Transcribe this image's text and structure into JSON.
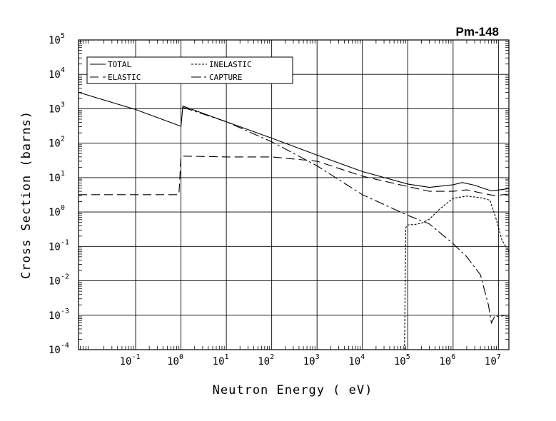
{
  "chart_data": {
    "type": "line",
    "title": "Pm-148",
    "xlabel": "Neutron Energy ( eV)",
    "ylabel": "Cross Section (barns)",
    "x_scale": "log",
    "y_scale": "log",
    "xlim": [
      0.0055,
      17000000
    ],
    "ylim": [
      0.0001,
      100000
    ],
    "grid": true,
    "legend_position": "top-left",
    "x_ticks": [
      {
        "base": "10",
        "exp": "-1",
        "value": 0.1
      },
      {
        "base": "10",
        "exp": "0",
        "value": 1
      },
      {
        "base": "10",
        "exp": "1",
        "value": 10
      },
      {
        "base": "10",
        "exp": "2",
        "value": 100
      },
      {
        "base": "10",
        "exp": "3",
        "value": 1000
      },
      {
        "base": "10",
        "exp": "4",
        "value": 10000
      },
      {
        "base": "10",
        "exp": "5",
        "value": 100000
      },
      {
        "base": "10",
        "exp": "6",
        "value": 1000000
      },
      {
        "base": "10",
        "exp": "7",
        "value": 10000000
      }
    ],
    "y_ticks": [
      {
        "base": "10",
        "exp": "-4",
        "value": 0.0001
      },
      {
        "base": "10",
        "exp": "-3",
        "value": 0.001
      },
      {
        "base": "10",
        "exp": "-2",
        "value": 0.01
      },
      {
        "base": "10",
        "exp": "-1",
        "value": 0.1
      },
      {
        "base": "10",
        "exp": "0",
        "value": 1
      },
      {
        "base": "10",
        "exp": "1",
        "value": 10
      },
      {
        "base": "10",
        "exp": "2",
        "value": 100
      },
      {
        "base": "10",
        "exp": "3",
        "value": 1000
      },
      {
        "base": "10",
        "exp": "4",
        "value": 10000
      },
      {
        "base": "10",
        "exp": "5",
        "value": 100000
      }
    ],
    "series": [
      {
        "name": "TOTAL",
        "dash": "solid",
        "x": [
          0.0055,
          0.1,
          1.0,
          1.0,
          1.1,
          10,
          100,
          1000,
          10000,
          100000,
          300000,
          1000000,
          1600000,
          3000000,
          7000000,
          17000000
        ],
        "y": [
          3000,
          950,
          310,
          310,
          1200,
          420,
          140,
          45,
          15,
          6.5,
          5.2,
          6.2,
          7.2,
          6.0,
          4.1,
          4.8
        ]
      },
      {
        "name": "ELASTIC",
        "dash": "long-dash",
        "x": [
          0.0055,
          0.9,
          0.9,
          1.0,
          1.1,
          10,
          100,
          1000,
          10000,
          100000,
          300000,
          1000000,
          2000000,
          5000000,
          8000000,
          17000000
        ],
        "y": [
          3.2,
          3.2,
          3.2,
          42,
          42,
          40,
          40,
          30,
          11,
          5.5,
          4.0,
          4.0,
          4.4,
          3.4,
          3.0,
          3.3
        ]
      },
      {
        "name": "INELASTIC",
        "dash": "short-dash",
        "x": [
          85000,
          90000,
          100000,
          150000,
          200000,
          300000,
          500000,
          1000000,
          2000000,
          4000000,
          6500000,
          9000000,
          12000000,
          17000000
        ],
        "y": [
          0.0001,
          0.35,
          0.42,
          0.44,
          0.47,
          0.62,
          1.2,
          2.5,
          2.9,
          2.6,
          2.2,
          0.6,
          0.15,
          0.07
        ]
      },
      {
        "name": "CAPTURE",
        "dash": "dash-dot",
        "x": [
          1.1,
          10,
          100,
          1000,
          10000,
          100000,
          300000,
          1000000,
          2000000,
          4000000,
          6000000,
          7000000,
          8500000,
          10000000,
          14000000,
          17000000
        ],
        "y": [
          1100,
          420,
          110,
          22,
          3.2,
          0.8,
          0.45,
          0.12,
          0.05,
          0.015,
          0.002,
          0.0006,
          0.001,
          0.0009,
          0.001,
          0.001
        ]
      }
    ]
  }
}
